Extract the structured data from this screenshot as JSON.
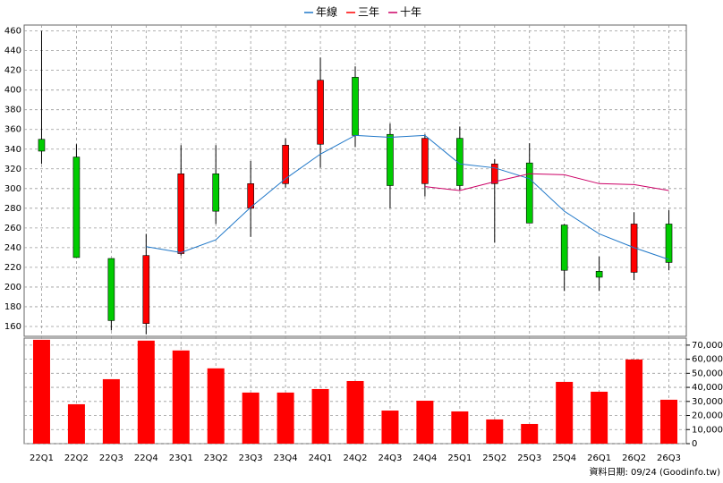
{
  "chart_data": [
    {
      "type": "candlestick",
      "categories": [
        "22Q1",
        "22Q2",
        "22Q3",
        "22Q4",
        "23Q1",
        "23Q2",
        "23Q3",
        "23Q4",
        "24Q1",
        "24Q2",
        "24Q3",
        "24Q4",
        "25Q1",
        "25Q2",
        "25Q3",
        "25Q4",
        "26Q1",
        "26Q2",
        "26Q3"
      ],
      "open": [
        350,
        332,
        229,
        163,
        234,
        315,
        280,
        305,
        345,
        413,
        355,
        305,
        351,
        305,
        326,
        263,
        216,
        215,
        264
      ],
      "high": [
        460,
        345,
        229,
        254,
        344,
        344,
        328,
        351,
        433,
        424,
        366,
        355,
        363,
        330,
        346,
        264,
        231,
        276,
        278
      ],
      "low": [
        325,
        230,
        156,
        152,
        232,
        264,
        251,
        301,
        321,
        342,
        280,
        292,
        298,
        245,
        265,
        196,
        196,
        207,
        217
      ],
      "close": [
        338,
        230,
        166,
        232,
        315,
        277,
        305,
        344,
        410,
        354,
        303,
        351,
        303,
        325,
        265,
        217,
        210,
        264,
        225
      ],
      "up_color": "#ff0000",
      "down_color": "#00cc00",
      "series": [
        {
          "name": "年線",
          "color": "#1f77c8",
          "values": [
            null,
            null,
            null,
            241,
            235,
            248,
            281,
            310,
            335,
            354,
            352,
            354,
            325,
            321,
            310,
            277,
            254,
            240,
            228
          ]
        },
        {
          "name": "三年",
          "color": "#ff0000",
          "values": [
            null,
            null,
            null,
            null,
            null,
            null,
            null,
            null,
            null,
            null,
            null,
            null,
            null,
            null,
            null,
            null,
            null,
            null,
            null
          ]
        },
        {
          "name": "十年",
          "color": "#cc0066",
          "values": [
            null,
            null,
            null,
            null,
            null,
            null,
            null,
            null,
            null,
            null,
            null,
            302,
            298,
            307,
            315,
            314,
            305,
            304,
            298
          ]
        }
      ],
      "ylim": [
        150,
        466
      ],
      "yticks": [
        160,
        180,
        200,
        220,
        240,
        260,
        280,
        300,
        320,
        340,
        360,
        380,
        400,
        420,
        440,
        460
      ],
      "grid": true
    },
    {
      "type": "bar",
      "values": [
        73800,
        28000,
        45800,
        73200,
        66200,
        53500,
        36300,
        36300,
        38800,
        44500,
        23500,
        30500,
        22900,
        17200,
        14000,
        43900,
        36900,
        59800,
        31200
      ],
      "color": "#ff0000",
      "ylim": [
        0,
        75000
      ],
      "yticks": [
        0,
        {
          "value": 10000,
          "label": "10,000"
        },
        {
          "value": 20000,
          "label": "20,000"
        },
        {
          "value": 30000,
          "label": "30,000"
        },
        {
          "value": 40000,
          "label": "40,000"
        },
        {
          "value": 50000,
          "label": "50,000"
        },
        {
          "value": 60000,
          "label": "60,000"
        },
        {
          "value": 70000,
          "label": "70,000"
        }
      ],
      "grid": true,
      "footer": "資料日期: 09/24 (Goodinfo.tw)"
    }
  ]
}
